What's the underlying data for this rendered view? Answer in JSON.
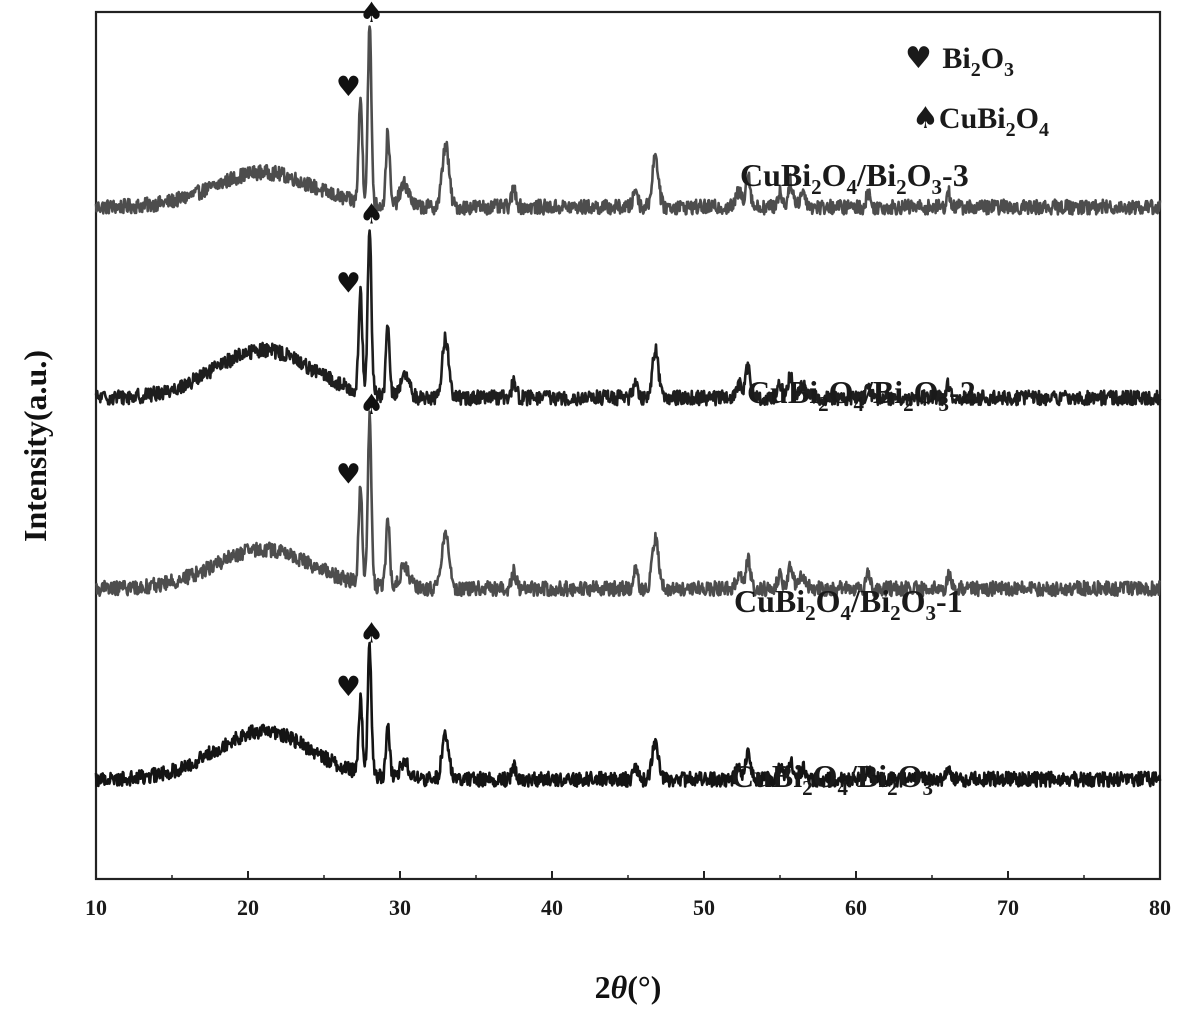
{
  "chart_data": {
    "type": "line",
    "xlabel": "2θ(°)",
    "xlabel_prefix": "2",
    "xlabel_symbol": "θ",
    "xlabel_suffix": "(°)",
    "ylabel": "Intensity(a.u.)",
    "xlim": [
      10,
      80
    ],
    "ylim": [
      0,
      100
    ],
    "x_ticks": [
      10,
      20,
      30,
      40,
      50,
      60,
      70,
      80
    ],
    "y_ticks_shown": false,
    "grid": false,
    "legend_position": "top-right",
    "legend": [
      {
        "symbol": "heart",
        "glyph": "♥",
        "base": "Bi",
        "sub1": "2",
        "mid": "O",
        "sub2": "3"
      },
      {
        "symbol": "spade",
        "glyph": "♠",
        "base": "CuBi",
        "sub1": "2",
        "mid": "O",
        "sub2": "4"
      }
    ],
    "series": [
      {
        "label": {
          "p1": "CuBi",
          "s1": "2",
          "p2": "O",
          "s2": "4",
          "p3": "/Bi",
          "s3": "2",
          "p4": "O",
          "s4": "3",
          "suffix": "-3"
        },
        "color": "#4d4d4d",
        "baseline": 77.5,
        "scale": 0.85,
        "hump": 4.0,
        "markers": [
          {
            "symbol": "heart",
            "x": 27.4
          },
          {
            "symbol": "spade",
            "x": 28.0
          }
        ]
      },
      {
        "label": {
          "p1": "CuBi",
          "s1": "2",
          "p2": "O",
          "s2": "4",
          "p3": "/Bi",
          "s3": "2",
          "p4": "O",
          "s4": "3",
          "suffix": "-2"
        },
        "color": "#1e1e1e",
        "baseline": 55.5,
        "scale": 0.8,
        "hump": 5.5,
        "markers": [
          {
            "symbol": "heart",
            "x": 27.4
          },
          {
            "symbol": "spade",
            "x": 28.0
          }
        ]
      },
      {
        "label": {
          "p1": "CuBi",
          "s1": "2",
          "p2": "O",
          "s2": "4",
          "p3": "/Bi",
          "s3": "2",
          "p4": "O",
          "s4": "3",
          "suffix": "-1"
        },
        "color": "#4d4d4d",
        "baseline": 33.5,
        "scale": 0.8,
        "hump": 4.5,
        "markers": [
          {
            "symbol": "heart",
            "x": 27.4
          },
          {
            "symbol": "spade",
            "x": 28.0
          }
        ]
      },
      {
        "label": {
          "p1": "CuBi",
          "s1": "2",
          "p2": "O",
          "s2": "4",
          "p3": "/Bi",
          "s3": "2",
          "p4": "O",
          "s4": "3",
          "suffix": ""
        },
        "color": "#141414",
        "baseline": 11.5,
        "scale": 0.62,
        "hump": 5.5,
        "markers": [
          {
            "symbol": "heart",
            "x": 27.4
          },
          {
            "symbol": "spade",
            "x": 28.0
          }
        ]
      }
    ],
    "peaks": [
      {
        "x": 27.4,
        "h": 14.0,
        "w": 0.12
      },
      {
        "x": 28.0,
        "h": 24.0,
        "w": 0.12
      },
      {
        "x": 29.2,
        "h": 10.0,
        "w": 0.12
      },
      {
        "x": 30.3,
        "h": 3.0,
        "w": 0.3
      },
      {
        "x": 33.0,
        "h": 8.5,
        "w": 0.22
      },
      {
        "x": 37.5,
        "h": 2.5,
        "w": 0.15
      },
      {
        "x": 45.5,
        "h": 2.5,
        "w": 0.15
      },
      {
        "x": 46.8,
        "h": 7.0,
        "w": 0.2
      },
      {
        "x": 52.3,
        "h": 2.0,
        "w": 0.2
      },
      {
        "x": 52.9,
        "h": 4.5,
        "w": 0.15
      },
      {
        "x": 55.0,
        "h": 2.0,
        "w": 0.15
      },
      {
        "x": 55.7,
        "h": 3.5,
        "w": 0.15
      },
      {
        "x": 56.5,
        "h": 2.0,
        "w": 0.2
      },
      {
        "x": 60.8,
        "h": 2.0,
        "w": 0.12
      },
      {
        "x": 66.1,
        "h": 2.0,
        "w": 0.12
      }
    ],
    "hump_center": 21,
    "hump_width": 3.2
  }
}
